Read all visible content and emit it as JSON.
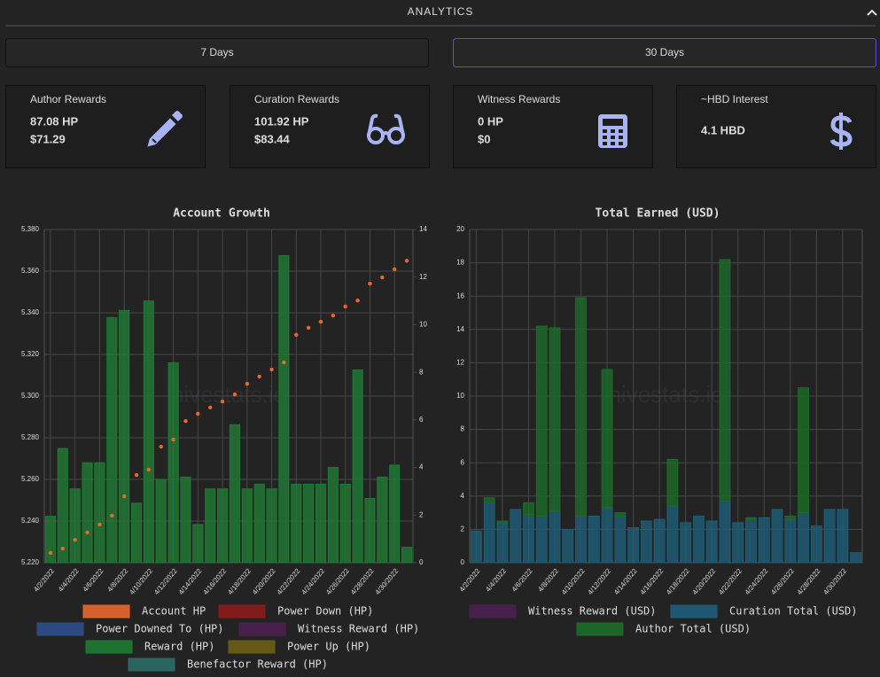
{
  "header": {
    "title": "ANALYTICS"
  },
  "buttons": [
    "7 Days",
    "30 Days"
  ],
  "cards": [
    {
      "title": "Author Rewards",
      "lines": [
        "87.08 HP",
        "$71.29"
      ]
    },
    {
      "title": "Curation Rewards",
      "lines": [
        "101.92 HP",
        "$83.44"
      ]
    },
    {
      "title": "Witness Rewards",
      "lines": [
        "0 HP",
        "$0"
      ]
    },
    {
      "title": "~HBD Interest",
      "lines": [
        "4.1 HBD"
      ]
    }
  ],
  "chart_data": [
    {
      "type": "combo",
      "title": "Account Growth",
      "annotation": "hivestats.io",
      "categories": [
        "4/2/2022",
        null,
        "4/4/2022",
        null,
        "4/6/2022",
        null,
        "4/8/2022",
        null,
        "4/10/2022",
        null,
        "4/12/2022",
        null,
        "4/14/2022",
        null,
        "4/16/2022",
        null,
        "4/18/2022",
        null,
        "4/20/2022",
        null,
        "4/22/2022",
        null,
        "4/24/2022",
        null,
        "4/26/2022",
        null,
        "4/28/2022",
        null,
        "4/30/2022",
        null
      ],
      "ylim": [
        5.22,
        5.38
      ],
      "yticks": [
        {
          "value": 5.22,
          "label": "5.220"
        },
        {
          "value": 5.24,
          "label": "5.240"
        },
        {
          "value": 5.26,
          "label": "5.260"
        },
        {
          "value": 5.28,
          "label": "5.280"
        },
        {
          "value": 5.3,
          "label": "5.300"
        },
        {
          "value": 5.32,
          "label": "5.320"
        },
        {
          "value": 5.34,
          "label": "5.340"
        },
        {
          "value": 5.36,
          "label": "5.360"
        },
        {
          "value": 5.38,
          "label": "5.380"
        }
      ],
      "y2lim": [
        0,
        14
      ],
      "y2ticks": [
        0,
        2,
        4,
        6,
        8,
        10,
        12,
        14
      ],
      "grid": true,
      "series": [
        {
          "name": "Account HP",
          "color": "#e8672e",
          "type": "line",
          "values": [
            5.2247,
            5.2268,
            5.231,
            5.2345,
            5.2383,
            5.2426,
            5.2519,
            5.2621,
            5.2647,
            5.2757,
            5.2791,
            5.288,
            5.2915,
            5.2945,
            5.2974,
            5.3008,
            5.3059,
            5.3094,
            5.3128,
            5.3162,
            5.3294,
            5.3328,
            5.3357,
            5.3387,
            5.343,
            5.3459,
            5.354,
            5.357,
            5.3609,
            5.365
          ]
        },
        {
          "name": "Power Down (HP)",
          "color": "#8b1c1c"
        },
        {
          "name": "Power Downed To (HP)",
          "color": "#2c4f8c"
        },
        {
          "name": "Witness Reward (HP)",
          "color": "#4b2150"
        },
        {
          "name": "Reward (HP)",
          "color": "#1f7a33",
          "type": "bar",
          "axis": "y2",
          "values": [
            1.95,
            4.8,
            3.1,
            4.2,
            4.2,
            10.3,
            10.6,
            2.5,
            11,
            3.5,
            8.4,
            3.6,
            1.6,
            3.1,
            3.1,
            5.8,
            3.1,
            3.3,
            3.1,
            12.9,
            3.3,
            3.3,
            3.3,
            4,
            3.3,
            8.1,
            2.7,
            3.6,
            4.1,
            0.65
          ]
        },
        {
          "name": "Power Up (HP)",
          "color": "#6b5e16"
        },
        {
          "name": "Benefactor Reward (HP)",
          "color": "#2e6b66"
        }
      ]
    },
    {
      "type": "bar",
      "stacked": true,
      "title": "Total Earned (USD)",
      "annotation": "hivestats.io",
      "categories": [
        "4/2/2022",
        null,
        "4/4/2022",
        null,
        "4/6/2022",
        null,
        "4/8/2022",
        null,
        "4/10/2022",
        null,
        "4/12/2022",
        null,
        "4/14/2022",
        null,
        "4/16/2022",
        null,
        "4/18/2022",
        null,
        "4/20/2022",
        null,
        "4/22/2022",
        null,
        "4/24/2022",
        null,
        "4/26/2022",
        null,
        "4/28/2022",
        null,
        "4/30/2022",
        null
      ],
      "ylim": [
        0,
        20
      ],
      "yticks": [
        0,
        2,
        4,
        6,
        8,
        10,
        12,
        14,
        16,
        18,
        20
      ],
      "grid": true,
      "series": [
        {
          "name": "Witness Reward (USD)",
          "color": "#4b2150"
        },
        {
          "name": "Curation Total (USD)",
          "color": "#1e5d78",
          "values": [
            1.9,
            3.6,
            2.4,
            3.2,
            2.9,
            2.8,
            3.1,
            2.0,
            2.8,
            2.8,
            3.3,
            2.8,
            2.1,
            2.5,
            2.6,
            3.4,
            2.4,
            2.8,
            2.5,
            3.7,
            2.4,
            2.6,
            2.7,
            3.2,
            2.6,
            3.0,
            2.2,
            3.2,
            3.2,
            0.6
          ]
        },
        {
          "name": "Author Total (USD)",
          "color": "#1c6b28",
          "values": [
            0,
            0.3,
            0.1,
            0,
            0.7,
            11.4,
            11.0,
            0,
            13.1,
            0,
            8.3,
            0.2,
            0,
            0,
            0,
            2.8,
            0,
            0,
            0,
            14.5,
            0,
            0.1,
            0,
            0,
            0.2,
            7.5,
            0,
            0,
            0,
            0
          ]
        }
      ]
    }
  ]
}
